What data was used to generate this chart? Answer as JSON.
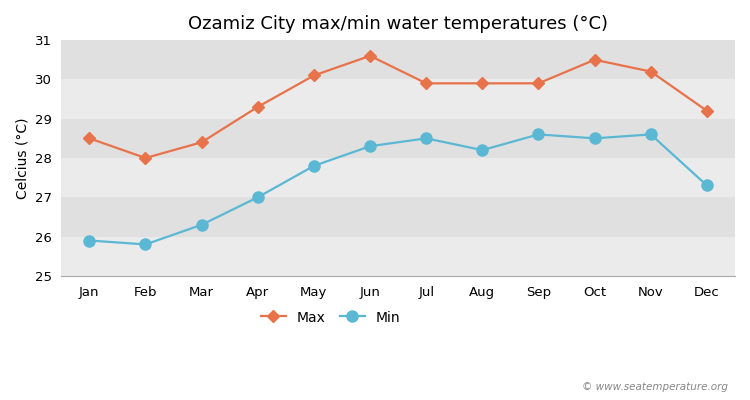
{
  "title": "Ozamiz City max/min water temperatures (°C)",
  "ylabel": "Celcius (°C)",
  "months": [
    "Jan",
    "Feb",
    "Mar",
    "Apr",
    "May",
    "Jun",
    "Jul",
    "Aug",
    "Sep",
    "Oct",
    "Nov",
    "Dec"
  ],
  "max_values": [
    28.5,
    28.0,
    28.4,
    29.3,
    30.1,
    30.6,
    29.9,
    29.9,
    29.9,
    30.5,
    30.2,
    29.2
  ],
  "min_values": [
    25.9,
    25.8,
    26.3,
    27.0,
    27.8,
    28.3,
    28.5,
    28.2,
    28.6,
    28.5,
    28.6,
    27.3
  ],
  "max_color": "#E8724A",
  "min_color": "#5BB8D4",
  "fig_bg_color": "#FFFFFF",
  "band_colors": [
    "#EBEBEB",
    "#E0E0E0"
  ],
  "ylim": [
    25,
    31
  ],
  "yticks": [
    25,
    26,
    27,
    28,
    29,
    30,
    31
  ],
  "legend_labels": [
    "Max",
    "Min"
  ],
  "watermark": "© www.seatemperature.org",
  "title_fontsize": 13,
  "axis_label_fontsize": 10,
  "tick_fontsize": 9.5,
  "legend_fontsize": 10,
  "max_marker": "D",
  "min_marker": "o",
  "max_markersize": 6,
  "min_markersize": 8,
  "linewidth": 1.6
}
